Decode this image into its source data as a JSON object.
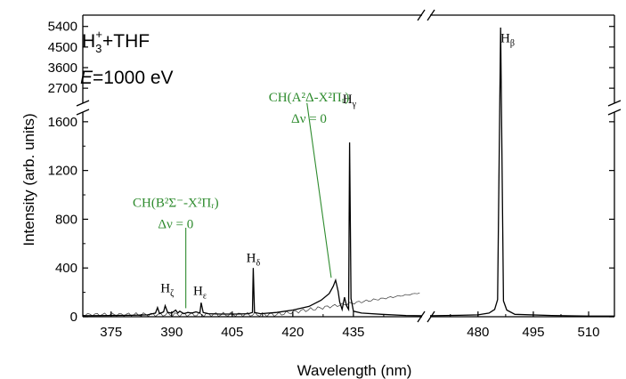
{
  "chart_data": {
    "type": "line",
    "xlabel": "Wavelength (nm)",
    "ylabel": "Intensity (arb. units)",
    "legend": {
      "ion": "H",
      "ion_sub": "3",
      "ion_sup": "+",
      "rest": "+THF",
      "energy_var": "E",
      "energy_rest": "=1000 eV"
    },
    "x_ticks_left": [
      375,
      390,
      405,
      420,
      435
    ],
    "x_ticks_right": [
      480,
      495,
      510
    ],
    "y_ticks_lower": [
      0,
      400,
      800,
      1200,
      1600
    ],
    "y_ticks_upper": [
      2700,
      3600,
      4500,
      5400
    ],
    "x_ranges": [
      [
        368,
        452
      ],
      [
        467,
        517
      ]
    ],
    "y_lower_range": [
      0,
      1650
    ],
    "y_upper_range": [
      2200,
      5700
    ],
    "accent_color": "#2e8b2e",
    "series": [
      {
        "points": [
          [
            368,
            8
          ],
          [
            375,
            10
          ],
          [
            380,
            12
          ],
          [
            384,
            15
          ],
          [
            386,
            30
          ],
          [
            386.5,
            75
          ],
          [
            387,
            25
          ],
          [
            388,
            40
          ],
          [
            388.4,
            90
          ],
          [
            389,
            35
          ],
          [
            390,
            30
          ],
          [
            391,
            55
          ],
          [
            391.5,
            30
          ],
          [
            392,
            45
          ],
          [
            393,
            25
          ],
          [
            394,
            35
          ],
          [
            395,
            30
          ],
          [
            396,
            40
          ],
          [
            397,
            30
          ],
          [
            397.3,
            115
          ],
          [
            397.8,
            35
          ],
          [
            399,
            25
          ],
          [
            402,
            22
          ],
          [
            406,
            22
          ],
          [
            409,
            25
          ],
          [
            410,
            35
          ],
          [
            410.2,
            400
          ],
          [
            410.5,
            35
          ],
          [
            412,
            25
          ],
          [
            416,
            35
          ],
          [
            420,
            55
          ],
          [
            424,
            85
          ],
          [
            427,
            135
          ],
          [
            429,
            190
          ],
          [
            430,
            250
          ],
          [
            430.6,
            300
          ],
          [
            431.2,
            210
          ],
          [
            431.6,
            120
          ],
          [
            432.2,
            60
          ],
          [
            432.8,
            160
          ],
          [
            433.3,
            90
          ],
          [
            433.8,
            60
          ],
          [
            434.05,
            1430
          ],
          [
            434.4,
            150
          ],
          [
            435,
            45
          ],
          [
            437,
            30
          ],
          [
            442,
            20
          ],
          [
            448,
            10
          ],
          [
            452,
            8
          ]
        ]
      },
      {
        "points": [
          [
            467,
            8
          ],
          [
            475,
            12
          ],
          [
            480,
            15
          ],
          [
            483,
            30
          ],
          [
            484.5,
            60
          ],
          [
            485.3,
            140
          ],
          [
            486.13,
            5350
          ],
          [
            486.9,
            130
          ],
          [
            487.8,
            55
          ],
          [
            490,
            20
          ],
          [
            500,
            10
          ],
          [
            510,
            5
          ],
          [
            517,
            5
          ]
        ]
      }
    ],
    "peak_labels": [
      {
        "base": "H",
        "sub": "ζ",
        "x": 388.9,
        "y": 200
      },
      {
        "base": "H",
        "sub": "ε",
        "x": 397.0,
        "y": 180
      },
      {
        "base": "H",
        "sub": "δ",
        "x": 410.2,
        "y": 450
      },
      {
        "base": "H",
        "sub": "γ",
        "x": 434.0,
        "y": 1660
      },
      {
        "base": "H",
        "sub": "β",
        "x": 488.0,
        "y": 4700
      }
    ],
    "annotations": [
      {
        "line1": "CH(B²Σ⁻-X²Πᵣ)",
        "line2": "Δν = 0",
        "x": 391.0,
        "y": 900,
        "pointer_from": [
          393.5,
          730
        ],
        "pointer_to": [
          393.5,
          70
        ]
      },
      {
        "line1": "CH(A²Δ-X²Πᵣ)",
        "line2": "Δν = 0",
        "x": 424.0,
        "y": 1900,
        "pointer_from": [
          423.5,
          1680
        ],
        "pointer_to": [
          429.5,
          320
        ]
      }
    ]
  }
}
